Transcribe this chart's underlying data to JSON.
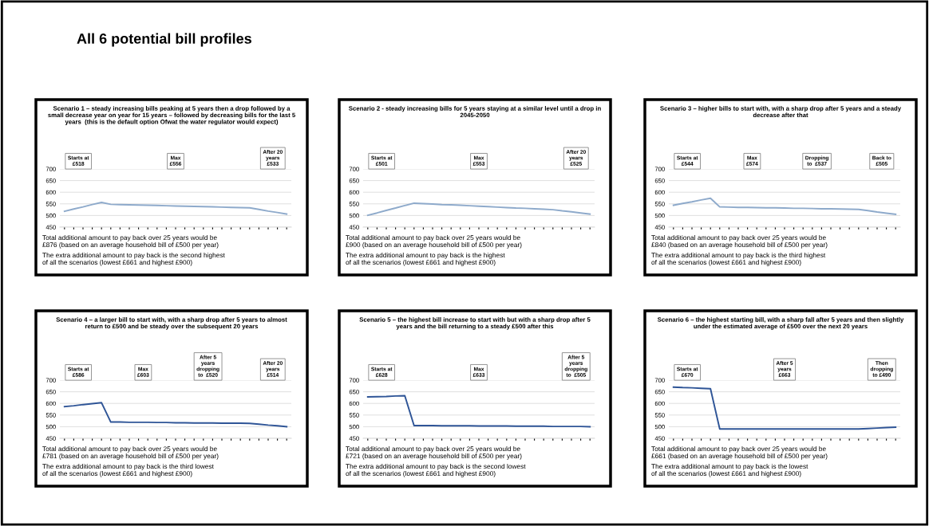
{
  "chart_data": [
    {
      "type": "other",
      "title": "All 6 potential bill profiles"
    },
    {
      "type": "line",
      "title": "Scenario 1 – steady increasing bills peaking at 5 years then a drop followed by a\nsmall decrease year on year for 15 years – followed by decreasing bills for the last 5\nyears  (this is the default option Ofwat the water regulator would expect)",
      "categories": [
        null,
        null,
        null,
        null,
        null,
        null,
        null,
        null,
        null,
        null,
        null,
        null,
        null,
        null,
        null,
        null,
        null,
        null,
        null,
        null,
        null,
        null,
        null,
        null,
        null
      ],
      "color": "#8eaacb",
      "values": [
        518,
        528,
        537,
        547,
        556,
        548,
        547,
        546,
        545,
        544,
        543,
        542,
        541,
        540,
        539,
        538,
        537,
        536,
        535,
        534,
        533,
        526,
        519,
        513,
        506
      ],
      "ylim": [
        450,
        700
      ],
      "yticks": [
        450,
        500,
        550,
        600,
        650,
        700
      ],
      "grid": "y",
      "tick_labels": "y",
      "annotations": [
        "Starts at\n£518",
        "Max\n£556",
        "After 20\nyears\n£533",
        "Total additional amount to pay back over 25 years would be £876 (based on an average household bill of £500 per year)",
        "The extra additional amount to pay back is the second highest of all the scenarios (lowest £661 and highest £900)"
      ]
    },
    {
      "type": "line",
      "title": "Scenario 2 - steady increasing bills for 5 years staying at a similar level until a drop in\n2045-2050",
      "categories": [
        null,
        null,
        null,
        null,
        null,
        null,
        null,
        null,
        null,
        null,
        null,
        null,
        null,
        null,
        null,
        null,
        null,
        null,
        null,
        null,
        null,
        null,
        null,
        null,
        null
      ],
      "color": "#8eaacb",
      "values": [
        501,
        511,
        522,
        532,
        543,
        553,
        551,
        549,
        547,
        546,
        544,
        542,
        540,
        538,
        536,
        534,
        532,
        531,
        529,
        527,
        525,
        520,
        516,
        511,
        506
      ],
      "ylim": [
        450,
        700
      ],
      "yticks": [
        450,
        500,
        550,
        600,
        650,
        700
      ],
      "grid": "y",
      "tick_labels": "y",
      "annotations": [
        "Starts at\n£501",
        "Max\n£553",
        "After 20\nyears\n£525",
        "Total additional amount to pay back over 25 years would be £900 (based on an average household bill of £500 per year)",
        "The extra additional amount to pay back is the highest of all the scenarios (lowest £661 and highest £900)"
      ]
    },
    {
      "type": "line",
      "title": "Scenario 3 – higher bills to start with, with a sharp drop after 5 years and a steady\ndecrease after that",
      "categories": [
        null,
        null,
        null,
        null,
        null,
        null,
        null,
        null,
        null,
        null,
        null,
        null,
        null,
        null,
        null,
        null,
        null,
        null,
        null,
        null,
        null,
        null,
        null,
        null,
        null
      ],
      "color": "#8eaacb",
      "values": [
        544,
        552,
        559,
        567,
        574,
        537,
        536,
        535,
        535,
        534,
        533,
        533,
        532,
        531,
        531,
        530,
        529,
        529,
        528,
        527,
        526,
        521,
        515,
        510,
        505
      ],
      "ylim": [
        450,
        700
      ],
      "yticks": [
        450,
        500,
        550,
        600,
        650,
        700
      ],
      "grid": "y",
      "tick_labels": "y",
      "annotations": [
        "Starts at\n£544",
        "Max\n£574",
        "Dropping\nto  £537",
        "Back to\n£505",
        "Total additional amount to pay back over 25 years would be £840 (based on an average household bill of £500 per year)",
        "The extra additional amount to pay back is the third highest of all the scenarios (lowest £661 and highest £900)"
      ]
    },
    {
      "type": "line",
      "title": "Scenario 4 – a larger bill to start with, with a sharp drop after 5 years to almost\nreturn to £500 and be steady over the subsequent 20 years",
      "categories": [
        null,
        null,
        null,
        null,
        null,
        null,
        null,
        null,
        null,
        null,
        null,
        null,
        null,
        null,
        null,
        null,
        null,
        null,
        null,
        null,
        null,
        null,
        null,
        null,
        null
      ],
      "color": "#2f5597",
      "values": [
        586,
        590,
        595,
        599,
        603,
        520,
        520,
        519,
        519,
        519,
        518,
        518,
        517,
        517,
        516,
        516,
        516,
        515,
        515,
        515,
        514,
        511,
        507,
        504,
        500
      ],
      "ylim": [
        450,
        700
      ],
      "yticks": [
        450,
        500,
        550,
        600,
        650,
        700
      ],
      "grid": "y",
      "tick_labels": "y",
      "annotations": [
        "Starts at\n£586",
        "Max\n£603",
        "After 5\nyears\ndropping\nto  £520",
        "After 20\nyears\n£514",
        "Total additional amount to pay back over 25 years would be £781 (based on an average household bill of £500 per year)",
        "The extra additional amount to pay back is the third lowest of all the scenarios (lowest £661 and highest £900)"
      ]
    },
    {
      "type": "line",
      "title": "Scenario 5 – the highest bill increase to start with but with a sharp drop after 5\nyears and the bill returning to a steady £500 after this",
      "categories": [
        null,
        null,
        null,
        null,
        null,
        null,
        null,
        null,
        null,
        null,
        null,
        null,
        null,
        null,
        null,
        null,
        null,
        null,
        null,
        null,
        null,
        null,
        null,
        null,
        null
      ],
      "color": "#2f5597",
      "values": [
        628,
        629,
        630,
        632,
        633,
        505,
        505,
        505,
        504,
        504,
        504,
        504,
        503,
        503,
        503,
        503,
        502,
        502,
        502,
        502,
        501,
        501,
        501,
        501,
        500
      ],
      "ylim": [
        450,
        700
      ],
      "yticks": [
        450,
        500,
        550,
        600,
        650,
        700
      ],
      "grid": "y",
      "tick_labels": "y",
      "annotations": [
        "Starts at\n£628",
        "Max\n£633",
        "After 5\nyears\ndropping\nto  £505",
        "Total additional amount to pay back over 25 years would be £721 (based on an average household bill of £500 per year)",
        "The extra additional amount to pay back is the second lowest of all the scenarios (lowest £661 and highest £900)"
      ]
    },
    {
      "type": "line",
      "title": "Scenario 6 – the highest starting bill, with a sharp fall after 5 years and then slightly\nunder the estimated average of £500 over the next 20 years",
      "categories": [
        null,
        null,
        null,
        null,
        null,
        null,
        null,
        null,
        null,
        null,
        null,
        null,
        null,
        null,
        null,
        null,
        null,
        null,
        null,
        null,
        null,
        null,
        null,
        null,
        null
      ],
      "color": "#2f5597",
      "values": [
        670,
        668,
        667,
        665,
        663,
        490,
        490,
        490,
        490,
        490,
        490,
        490,
        490,
        490,
        490,
        490,
        490,
        490,
        490,
        490,
        490,
        492,
        494,
        496,
        498
      ],
      "ylim": [
        450,
        700
      ],
      "yticks": [
        450,
        500,
        550,
        600,
        650,
        700
      ],
      "grid": "y",
      "tick_labels": "y",
      "annotations": [
        "Starts at\n£670",
        "After 5\nyears\n£663",
        "Then\ndropping\nto £490",
        "Total additional amount to pay back over 25 years would be £661 (based on an average household bill of £500 per year)",
        "The extra additional amount to pay back is the lowest of all the scenarios (lowest £661 and highest £900)"
      ]
    }
  ]
}
